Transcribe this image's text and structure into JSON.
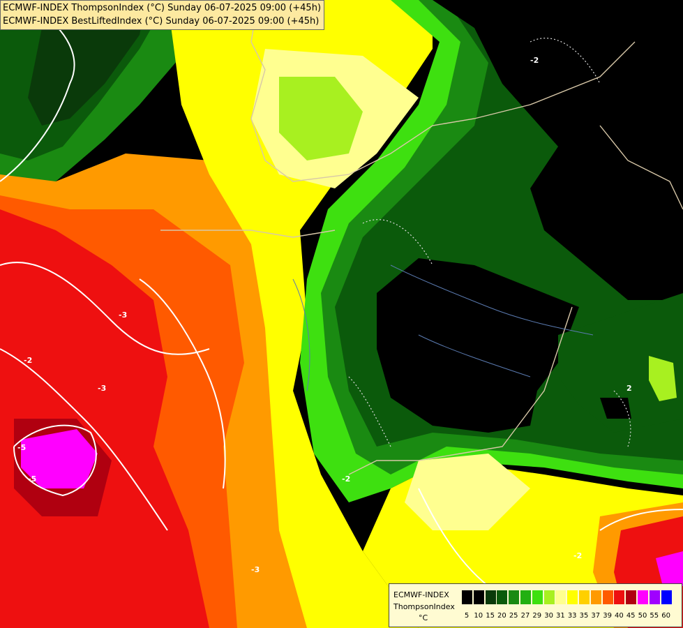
{
  "header": {
    "line1": "ECMWF-INDEX ThompsonIndex (°C) Sunday 06-07-2025 09:00 (+45h)",
    "line2": "ECMWF-INDEX BestLiftedIndex (°C) Sunday 06-07-2025 09:00 (+45h)"
  },
  "legend": {
    "source": "ECMWF-INDEX",
    "variable": "ThompsonIndex",
    "unit": "°C",
    "steps": [
      {
        "value": "5",
        "color": "#000000"
      },
      {
        "value": "10",
        "color": "#000000"
      },
      {
        "value": "15",
        "color": "#0a3a0a"
      },
      {
        "value": "20",
        "color": "#0b5a0b"
      },
      {
        "value": "25",
        "color": "#1a8a12"
      },
      {
        "value": "27",
        "color": "#22b012"
      },
      {
        "value": "29",
        "color": "#3ee010"
      },
      {
        "value": "30",
        "color": "#a8f020"
      },
      {
        "value": "31",
        "color": "#ffff90"
      },
      {
        "value": "33",
        "color": "#ffff00"
      },
      {
        "value": "35",
        "color": "#ffd000"
      },
      {
        "value": "37",
        "color": "#ff9a00"
      },
      {
        "value": "39",
        "color": "#ff5a00"
      },
      {
        "value": "40",
        "color": "#ee1010"
      },
      {
        "value": "45",
        "color": "#b00010"
      },
      {
        "value": "50",
        "color": "#ff00ff"
      },
      {
        "value": "55",
        "color": "#a000ff"
      },
      {
        "value": "60",
        "color": "#0000ff"
      }
    ]
  },
  "contour_labels": [
    "-2",
    "-3",
    "-3",
    "-5",
    "-5",
    "2",
    "-2",
    "-2",
    "-2",
    "-3"
  ]
}
